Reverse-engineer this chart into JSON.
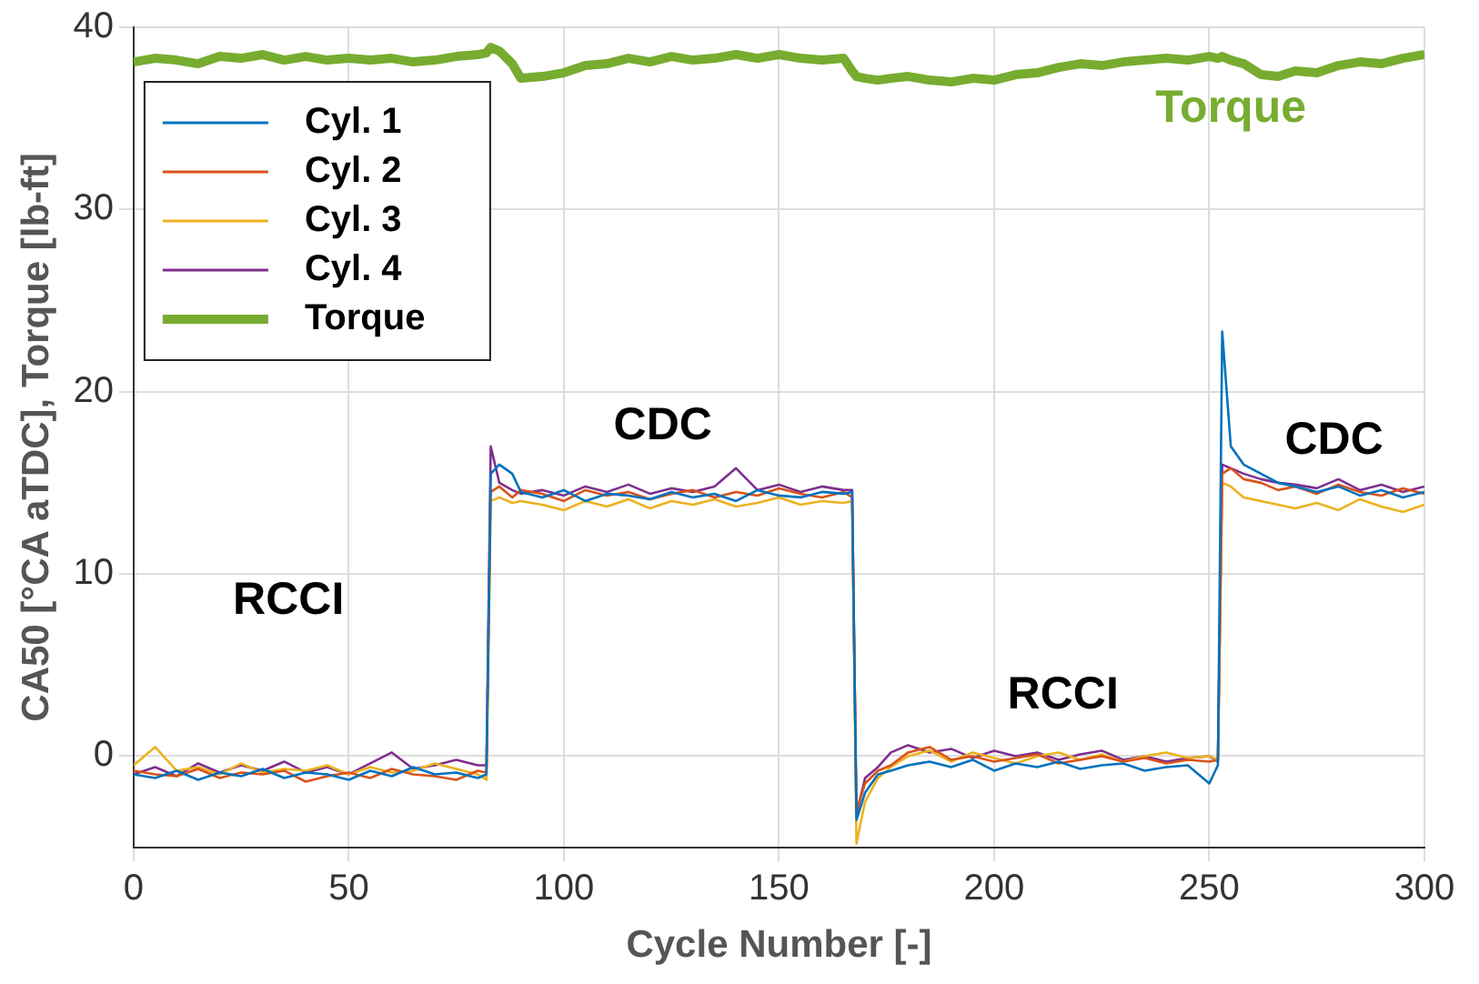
{
  "chart_data": {
    "type": "line",
    "xlabel": "Cycle Number [-]",
    "ylabel": "CA50 [°CA aTDC], Torque [lb-ft]",
    "x": [
      0,
      5,
      10,
      15,
      20,
      25,
      30,
      35,
      40,
      45,
      50,
      55,
      60,
      65,
      70,
      75,
      80,
      82,
      83,
      85,
      88,
      90,
      95,
      100,
      105,
      110,
      115,
      120,
      125,
      130,
      135,
      140,
      145,
      150,
      155,
      160,
      165,
      167,
      168,
      170,
      173,
      176,
      180,
      185,
      190,
      195,
      200,
      205,
      210,
      215,
      220,
      225,
      230,
      235,
      240,
      245,
      250,
      252,
      253,
      255,
      258,
      262,
      266,
      270,
      275,
      280,
      285,
      290,
      295,
      300
    ],
    "xlim": [
      0,
      300
    ],
    "xticks": [
      0,
      50,
      100,
      150,
      200,
      250,
      300
    ],
    "ylim": [
      -5,
      40
    ],
    "yticks": [
      0,
      10,
      20,
      30,
      40
    ],
    "grid": true,
    "legend": "top left",
    "series": [
      {
        "name": "Cyl. 1",
        "color": "#0072bd",
        "values": [
          -1.0,
          -1.2,
          -0.8,
          -1.3,
          -0.9,
          -1.1,
          -0.7,
          -1.2,
          -0.9,
          -1.0,
          -1.3,
          -0.8,
          -1.1,
          -0.6,
          -1.0,
          -0.9,
          -1.2,
          -1.0,
          15.5,
          16.0,
          15.5,
          14.5,
          14.2,
          14.6,
          14.0,
          14.4,
          14.3,
          14.1,
          14.5,
          14.2,
          14.4,
          14.0,
          14.6,
          14.3,
          14.2,
          14.5,
          14.4,
          14.5,
          -3.5,
          -2.0,
          -1.0,
          -0.8,
          -0.5,
          -0.3,
          -0.6,
          -0.2,
          -0.8,
          -0.4,
          -0.6,
          -0.3,
          -0.7,
          -0.5,
          -0.4,
          -0.8,
          -0.6,
          -0.5,
          -1.5,
          -0.5,
          23.3,
          17.0,
          16.0,
          15.5,
          15.0,
          14.8,
          14.5,
          14.8,
          14.3,
          14.6,
          14.2,
          14.5
        ]
      },
      {
        "name": "Cyl. 2",
        "color": "#d95319",
        "values": [
          -0.8,
          -1.0,
          -1.1,
          -0.7,
          -1.2,
          -0.9,
          -1.0,
          -0.8,
          -1.4,
          -1.1,
          -0.9,
          -1.2,
          -0.7,
          -1.0,
          -1.1,
          -1.3,
          -0.8,
          -0.9,
          14.5,
          14.8,
          14.2,
          14.6,
          14.4,
          14.0,
          14.6,
          14.3,
          14.5,
          14.1,
          14.4,
          14.6,
          14.2,
          14.5,
          14.3,
          14.7,
          14.4,
          14.2,
          14.5,
          14.2,
          -3.0,
          -1.5,
          -0.8,
          -0.5,
          0.2,
          0.5,
          -0.2,
          0.0,
          -0.3,
          -0.1,
          0.1,
          -0.4,
          -0.2,
          0.0,
          -0.3,
          -0.1,
          -0.4,
          -0.2,
          -0.3,
          -0.2,
          15.5,
          15.8,
          15.2,
          15.0,
          14.6,
          14.8,
          14.4,
          14.9,
          14.5,
          14.3,
          14.7,
          14.4
        ]
      },
      {
        "name": "Cyl. 3",
        "color": "#edb120",
        "values": [
          -0.5,
          0.5,
          -0.8,
          -0.6,
          -1.0,
          -0.4,
          -0.9,
          -0.7,
          -0.8,
          -0.5,
          -1.0,
          -0.6,
          -0.9,
          -0.8,
          -0.4,
          -0.7,
          -1.0,
          -1.3,
          14.0,
          14.2,
          13.9,
          14.0,
          13.8,
          13.5,
          14.0,
          13.7,
          14.1,
          13.6,
          14.0,
          13.8,
          14.1,
          13.7,
          13.9,
          14.2,
          13.8,
          14.0,
          13.9,
          14.0,
          -4.8,
          -2.5,
          -1.2,
          -0.6,
          0.0,
          0.3,
          -0.3,
          0.2,
          -0.1,
          -0.4,
          0.0,
          0.2,
          -0.2,
          0.1,
          -0.3,
          0.0,
          0.2,
          -0.1,
          0.0,
          -0.2,
          15.0,
          14.8,
          14.2,
          14.0,
          13.8,
          13.6,
          13.9,
          13.5,
          14.1,
          13.7,
          13.4,
          13.8
        ]
      },
      {
        "name": "Cyl. 4",
        "color": "#7e2f8e",
        "values": [
          -1.0,
          -0.6,
          -1.1,
          -0.4,
          -0.9,
          -0.5,
          -0.8,
          -0.3,
          -0.9,
          -0.6,
          -1.0,
          -0.4,
          0.2,
          -0.7,
          -0.5,
          -0.2,
          -0.5,
          -0.5,
          17.0,
          15.0,
          14.6,
          14.4,
          14.6,
          14.3,
          14.8,
          14.5,
          14.9,
          14.4,
          14.7,
          14.5,
          14.8,
          15.8,
          14.6,
          14.9,
          14.5,
          14.8,
          14.6,
          14.6,
          -3.2,
          -1.2,
          -0.6,
          0.2,
          0.6,
          0.2,
          0.4,
          -0.1,
          0.3,
          0.0,
          0.2,
          -0.2,
          0.1,
          0.3,
          -0.2,
          0.0,
          -0.3,
          -0.1,
          0.0,
          -0.3,
          16.0,
          15.8,
          15.5,
          15.2,
          15.0,
          14.9,
          14.7,
          15.2,
          14.6,
          14.9,
          14.5,
          14.8
        ]
      },
      {
        "name": "Torque",
        "color": "#77ac30",
        "values": [
          38.1,
          38.3,
          38.2,
          38.0,
          38.4,
          38.3,
          38.5,
          38.2,
          38.4,
          38.2,
          38.3,
          38.2,
          38.3,
          38.1,
          38.2,
          38.4,
          38.5,
          38.6,
          38.9,
          38.7,
          38.0,
          37.2,
          37.3,
          37.5,
          37.9,
          38.0,
          38.3,
          38.1,
          38.4,
          38.2,
          38.3,
          38.5,
          38.3,
          38.5,
          38.3,
          38.2,
          38.3,
          37.6,
          37.3,
          37.2,
          37.1,
          37.2,
          37.3,
          37.1,
          37.0,
          37.2,
          37.1,
          37.4,
          37.5,
          37.8,
          38.0,
          37.9,
          38.1,
          38.2,
          38.3,
          38.2,
          38.4,
          38.3,
          38.4,
          38.2,
          38.0,
          37.4,
          37.3,
          37.6,
          37.5,
          37.9,
          38.1,
          38.0,
          38.3,
          38.5
        ]
      }
    ],
    "annotations": [
      "RCCI",
      "CDC",
      "RCCI",
      "CDC",
      "Torque"
    ]
  }
}
